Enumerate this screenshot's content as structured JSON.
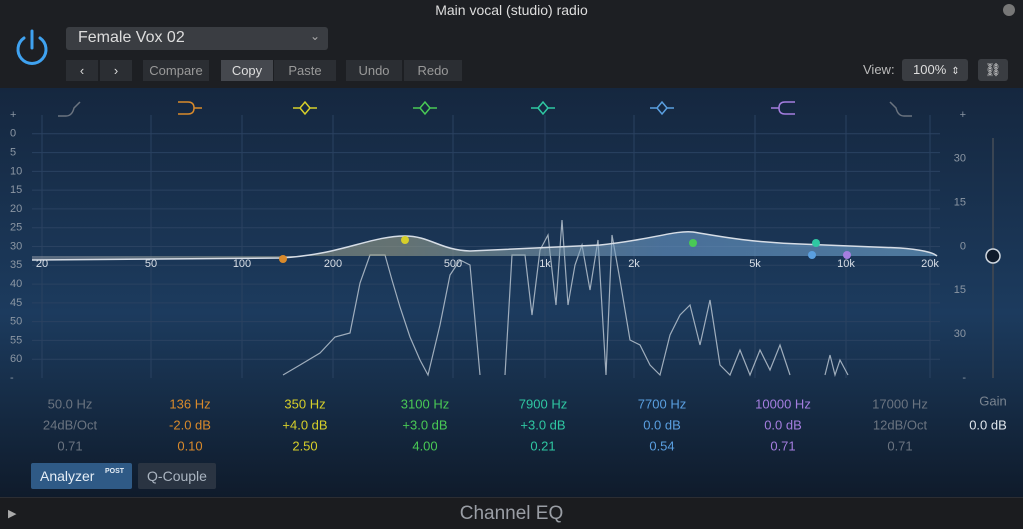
{
  "window": {
    "title": "Main vocal (studio) radio"
  },
  "toolbar": {
    "preset": "Female Vox 02",
    "buttons": [
      "Compare",
      "Copy",
      "Paste",
      "Undo",
      "Redo"
    ],
    "view_label": "View:",
    "view_value": "100%"
  },
  "eq": {
    "left_scale": [
      "+",
      "0",
      "5",
      "10",
      "15",
      "20",
      "25",
      "30",
      "35",
      "40",
      "45",
      "50",
      "55",
      "60",
      "-"
    ],
    "right_scale": [
      "+",
      "30",
      "15",
      "0",
      "15",
      "30",
      "-"
    ],
    "freq_labels": [
      "20",
      "50",
      "100",
      "200",
      "500",
      "1k",
      "2k",
      "5k",
      "10k",
      "20k"
    ],
    "bands": [
      {
        "freq": "50.0 Hz",
        "gain": "24dB/Oct",
        "q": "0.71",
        "color": "#6b7480"
      },
      {
        "freq": "136 Hz",
        "gain": "-2.0 dB",
        "q": "0.10",
        "color": "#d98a2b"
      },
      {
        "freq": "350 Hz",
        "gain": "+4.0 dB",
        "q": "2.50",
        "color": "#d6cf2a"
      },
      {
        "freq": "3100 Hz",
        "gain": "+3.0 dB",
        "q": "4.00",
        "color": "#49c955"
      },
      {
        "freq": "7900 Hz",
        "gain": "+3.0 dB",
        "q": "0.21",
        "color": "#2fc7a2"
      },
      {
        "freq": "7700 Hz",
        "gain": "0.0 dB",
        "q": "0.54",
        "color": "#5a9fe0"
      },
      {
        "freq": "10000 Hz",
        "gain": "0.0 dB",
        "q": "0.71",
        "color": "#a57ee0"
      },
      {
        "freq": "17000 Hz",
        "gain": "12dB/Oct",
        "q": "0.71",
        "color": "#6b7480"
      }
    ],
    "gain_label": "Gain",
    "gain_value": "0.0 dB"
  },
  "bottom": {
    "analyzer": "Analyzer",
    "analyzer_badge": "POST",
    "q_couple": "Q-Couple"
  },
  "footer": {
    "title": "Channel EQ"
  }
}
